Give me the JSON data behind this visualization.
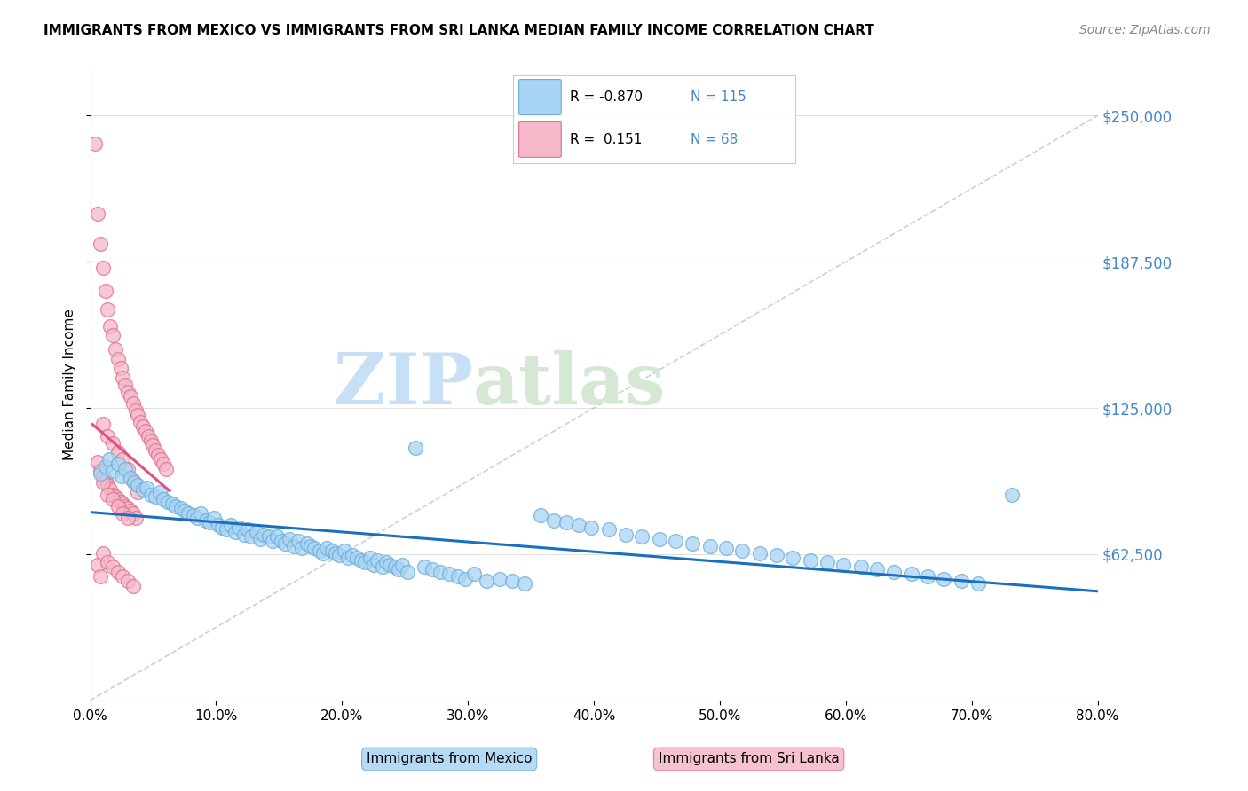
{
  "title": "IMMIGRANTS FROM MEXICO VS IMMIGRANTS FROM SRI LANKA MEDIAN FAMILY INCOME CORRELATION CHART",
  "source": "Source: ZipAtlas.com",
  "ylabel": "Median Family Income",
  "ytick_labels": [
    "$250,000",
    "$187,500",
    "$125,000",
    "$62,500"
  ],
  "ytick_values": [
    250000,
    187500,
    125000,
    62500
  ],
  "xlim": [
    0,
    0.8
  ],
  "ylim": [
    0,
    270000
  ],
  "mexico_R": -0.87,
  "mexico_N": 115,
  "srilanka_R": 0.151,
  "srilanka_N": 68,
  "mexico_color": "#A8D4F5",
  "mexico_edge": "#6BAED6",
  "srilanka_color": "#F5B8C8",
  "srilanka_edge": "#E07090",
  "mexico_line_color": "#1A6FBF",
  "srilanka_line_color": "#E05080",
  "diagonal_color": "#BBBBBB",
  "watermark_zip_color": "#C8E0F5",
  "watermark_atlas_color": "#D5E8D4",
  "right_axis_color": "#4488CC",
  "background": "#FFFFFF",
  "mexico_scatter_x": [
    0.008,
    0.012,
    0.015,
    0.018,
    0.022,
    0.025,
    0.028,
    0.032,
    0.035,
    0.038,
    0.042,
    0.045,
    0.048,
    0.052,
    0.055,
    0.058,
    0.062,
    0.065,
    0.068,
    0.072,
    0.075,
    0.078,
    0.082,
    0.085,
    0.088,
    0.092,
    0.095,
    0.098,
    0.102,
    0.105,
    0.108,
    0.112,
    0.115,
    0.118,
    0.122,
    0.125,
    0.128,
    0.132,
    0.135,
    0.138,
    0.142,
    0.145,
    0.148,
    0.152,
    0.155,
    0.158,
    0.162,
    0.165,
    0.168,
    0.172,
    0.175,
    0.178,
    0.182,
    0.185,
    0.188,
    0.192,
    0.195,
    0.198,
    0.202,
    0.205,
    0.208,
    0.212,
    0.215,
    0.218,
    0.222,
    0.225,
    0.228,
    0.232,
    0.235,
    0.238,
    0.242,
    0.245,
    0.248,
    0.252,
    0.258,
    0.265,
    0.272,
    0.278,
    0.285,
    0.292,
    0.298,
    0.305,
    0.315,
    0.325,
    0.335,
    0.345,
    0.358,
    0.368,
    0.378,
    0.388,
    0.398,
    0.412,
    0.425,
    0.438,
    0.452,
    0.465,
    0.478,
    0.492,
    0.505,
    0.518,
    0.532,
    0.545,
    0.558,
    0.572,
    0.585,
    0.598,
    0.612,
    0.625,
    0.638,
    0.652,
    0.665,
    0.678,
    0.692,
    0.705,
    0.732
  ],
  "mexico_scatter_y": [
    97000,
    100000,
    103000,
    98000,
    101000,
    96000,
    99000,
    95000,
    93000,
    92000,
    90000,
    91000,
    88000,
    87000,
    89000,
    86000,
    85000,
    84000,
    83000,
    82000,
    81000,
    80000,
    79000,
    78000,
    80000,
    77000,
    76000,
    78000,
    75000,
    74000,
    73000,
    75000,
    72000,
    74000,
    71000,
    73000,
    70000,
    72000,
    69000,
    71000,
    70000,
    68000,
    70000,
    68000,
    67000,
    69000,
    66000,
    68000,
    65000,
    67000,
    66000,
    65000,
    64000,
    63000,
    65000,
    64000,
    63000,
    62000,
    64000,
    61000,
    62000,
    61000,
    60000,
    59000,
    61000,
    58000,
    60000,
    57000,
    59000,
    58000,
    57000,
    56000,
    58000,
    55000,
    108000,
    57000,
    56000,
    55000,
    54000,
    53000,
    52000,
    54000,
    51000,
    52000,
    51000,
    50000,
    79000,
    77000,
    76000,
    75000,
    74000,
    73000,
    71000,
    70000,
    69000,
    68000,
    67000,
    66000,
    65000,
    64000,
    63000,
    62000,
    61000,
    60000,
    59000,
    58000,
    57000,
    56000,
    55000,
    54000,
    53000,
    52000,
    51000,
    50000,
    88000
  ],
  "srilanka_scatter_x": [
    0.004,
    0.006,
    0.008,
    0.01,
    0.012,
    0.014,
    0.016,
    0.018,
    0.02,
    0.022,
    0.024,
    0.026,
    0.028,
    0.03,
    0.032,
    0.034,
    0.036,
    0.038,
    0.04,
    0.042,
    0.044,
    0.046,
    0.048,
    0.05,
    0.052,
    0.054,
    0.056,
    0.058,
    0.06,
    0.006,
    0.008,
    0.01,
    0.012,
    0.014,
    0.016,
    0.018,
    0.02,
    0.022,
    0.024,
    0.026,
    0.028,
    0.03,
    0.032,
    0.034,
    0.036,
    0.01,
    0.014,
    0.018,
    0.022,
    0.026,
    0.03,
    0.034,
    0.038,
    0.006,
    0.008,
    0.01,
    0.014,
    0.018,
    0.022,
    0.026,
    0.03,
    0.034,
    0.01,
    0.014,
    0.018,
    0.022,
    0.026,
    0.03
  ],
  "srilanka_scatter_y": [
    238000,
    208000,
    195000,
    185000,
    175000,
    167000,
    160000,
    156000,
    150000,
    146000,
    142000,
    138000,
    135000,
    132000,
    130000,
    127000,
    124000,
    122000,
    119000,
    117000,
    115000,
    113000,
    111000,
    109000,
    107000,
    105000,
    103000,
    101000,
    99000,
    102000,
    98000,
    96000,
    94000,
    92000,
    90000,
    88000,
    87000,
    86000,
    85000,
    84000,
    83000,
    82000,
    81000,
    80000,
    78000,
    118000,
    113000,
    110000,
    106000,
    103000,
    99000,
    94000,
    89000,
    58000,
    53000,
    63000,
    59000,
    57000,
    55000,
    53000,
    51000,
    49000,
    93000,
    88000,
    86000,
    83000,
    80000,
    78000
  ]
}
